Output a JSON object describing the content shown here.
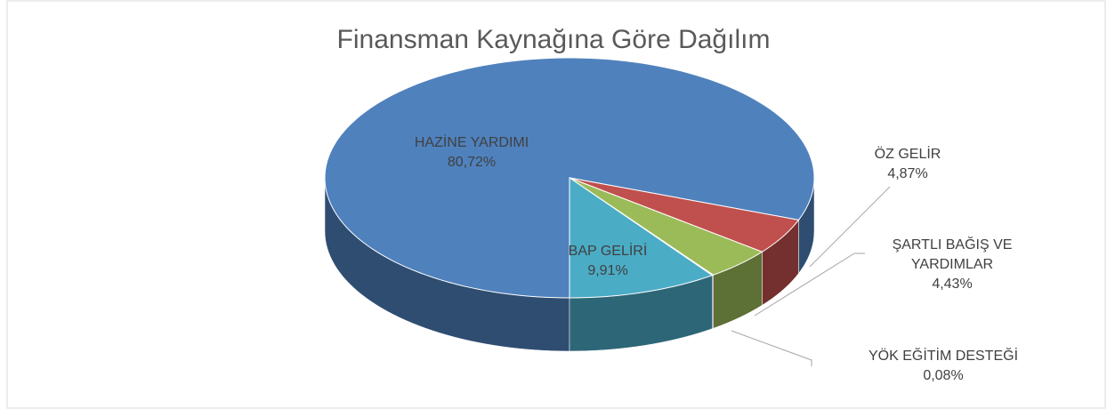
{
  "chart_data": {
    "type": "pie",
    "title": "Finansman Kaynağına Göre Dağılım",
    "categories": [
      "HAZİNE YARDIMI",
      "ÖZ GELİR",
      "ŞARTLI BAĞIŞ VE YARDIMLAR",
      "YÖK EĞİTİM DESTEĞİ",
      "BAP GELİRİ"
    ],
    "values": [
      80.72,
      4.87,
      4.43,
      0.08,
      9.91
    ],
    "value_labels": [
      "80,72%",
      "4,87%",
      "4,43%",
      "0,08%",
      "9,91%"
    ],
    "colors": [
      "#4f81bd",
      "#c0504d",
      "#9bbb59",
      "#8064a2",
      "#4bacc6"
    ]
  }
}
